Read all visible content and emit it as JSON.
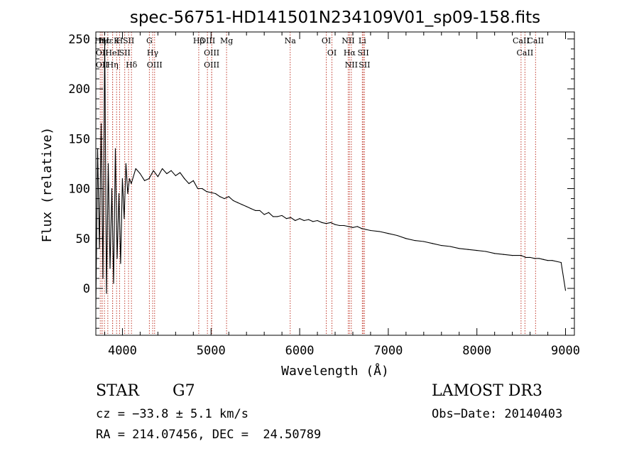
{
  "chart_data": {
    "type": "line",
    "title": "spec-56751-HD141501N234109V01_sp09-158.fits",
    "xlabel": "Wavelength (Å)",
    "ylabel": "Flux (relative)",
    "xlim": [
      3700,
      9100
    ],
    "ylim": [
      -47,
      257
    ],
    "x_ticks": [
      4000,
      5000,
      6000,
      7000,
      8000,
      9000
    ],
    "y_ticks": [
      0,
      50,
      100,
      150,
      200,
      250
    ],
    "grid": false,
    "series": [
      {
        "name": "flux",
        "x": [
          3700,
          3720,
          3740,
          3760,
          3780,
          3800,
          3820,
          3840,
          3860,
          3880,
          3900,
          3920,
          3940,
          3960,
          3980,
          4000,
          4020,
          4040,
          4060,
          4080,
          4100,
          4150,
          4200,
          4250,
          4300,
          4350,
          4400,
          4450,
          4500,
          4550,
          4600,
          4650,
          4700,
          4750,
          4800,
          4850,
          4900,
          4950,
          5000,
          5050,
          5100,
          5150,
          5200,
          5250,
          5300,
          5350,
          5400,
          5450,
          5500,
          5550,
          5600,
          5650,
          5700,
          5750,
          5800,
          5850,
          5900,
          5950,
          6000,
          6050,
          6100,
          6150,
          6200,
          6250,
          6300,
          6350,
          6400,
          6450,
          6500,
          6550,
          6600,
          6650,
          6700,
          6750,
          6800,
          6900,
          7000,
          7100,
          7200,
          7300,
          7400,
          7500,
          7600,
          7700,
          7800,
          7900,
          8000,
          8100,
          8200,
          8300,
          8400,
          8500,
          8550,
          8600,
          8650,
          8700,
          8750,
          8800,
          8850,
          8900,
          8950,
          9000
        ],
        "values": [
          -18,
          140,
          40,
          165,
          10,
          250,
          -5,
          125,
          20,
          100,
          5,
          140,
          30,
          95,
          25,
          110,
          70,
          125,
          95,
          110,
          105,
          120,
          115,
          108,
          110,
          118,
          112,
          120,
          115,
          118,
          113,
          116,
          110,
          105,
          108,
          100,
          100,
          97,
          96,
          95,
          92,
          90,
          92,
          88,
          86,
          84,
          82,
          80,
          78,
          78,
          74,
          76,
          72,
          72,
          73,
          70,
          71,
          68,
          70,
          68,
          69,
          67,
          68,
          66,
          65,
          66,
          64,
          63,
          63,
          62,
          61,
          62,
          60,
          59,
          58,
          57,
          55,
          53,
          50,
          48,
          47,
          45,
          43,
          42,
          40,
          39,
          38,
          37,
          35,
          34,
          33,
          33,
          31,
          31,
          30,
          30,
          29,
          28,
          28,
          27,
          26,
          -2
        ]
      }
    ],
    "lines": [
      {
        "x": 3750,
        "label": "Hη"
      },
      {
        "x": 3770,
        "label": "OII"
      },
      {
        "x": 3770,
        "label": "OII"
      },
      {
        "x": 3797,
        "label": "Hε"
      },
      {
        "x": 3835,
        "label": "Hε"
      },
      {
        "x": 3889,
        "label": "HeI"
      },
      {
        "x": 3889,
        "label": "Hη"
      },
      {
        "x": 3934,
        "label": "K"
      },
      {
        "x": 3968,
        "label": "H"
      },
      {
        "x": 4026,
        "label": "SII"
      },
      {
        "x": 4069,
        "label": "SII"
      },
      {
        "x": 4102,
        "label": "Hδ"
      },
      {
        "x": 4304,
        "label": "G"
      },
      {
        "x": 4341,
        "label": "Hγ"
      },
      {
        "x": 4363,
        "label": "OIII"
      },
      {
        "x": 4861,
        "label": "Hβ"
      },
      {
        "x": 4959,
        "label": "OIII"
      },
      {
        "x": 5007,
        "label": "OIII"
      },
      {
        "x": 5007,
        "label": "OIII"
      },
      {
        "x": 5175,
        "label": "Mg"
      },
      {
        "x": 5893,
        "label": "Na"
      },
      {
        "x": 6300,
        "label": "OI"
      },
      {
        "x": 6364,
        "label": "OI"
      },
      {
        "x": 6548,
        "label": "NII"
      },
      {
        "x": 6563,
        "label": "Hα"
      },
      {
        "x": 6583,
        "label": "NII"
      },
      {
        "x": 6707,
        "label": "Li"
      },
      {
        "x": 6717,
        "label": "SII"
      },
      {
        "x": 6731,
        "label": "SII"
      },
      {
        "x": 8498,
        "label": "CaII"
      },
      {
        "x": 8542,
        "label": "CaII"
      },
      {
        "x": 8662,
        "label": "CaII"
      }
    ]
  },
  "footer": {
    "object_type": "STAR",
    "subclass": "G7",
    "survey": "LAMOST DR3",
    "cz": "cz = −33.8 ± 5.1 km/s",
    "obs_date": "Obs−Date: 20140403",
    "coords": "RA = 214.07456, DEC =  24.50789"
  }
}
